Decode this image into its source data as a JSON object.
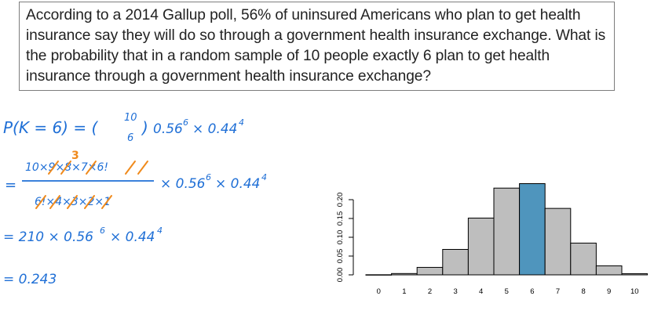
{
  "question": "According to a 2014 Gallup poll, 56% of uninsured Americans who plan to get health insurance say they will do so through a government health insurance exchange. What is the probability that in a random sample of 10 people exactly 6 plan to get health insurance through a government health insurance exchange?",
  "work": {
    "line1": {
      "lhs": "P(K = 6) = (",
      "binom_top": "10",
      "binom_bottom": "6",
      "close": ")",
      "mid": "0.56",
      "exp1": "6",
      "times": "× 0.44",
      "exp2": "4"
    },
    "line2": {
      "eq": "=",
      "numerator": "10×9×8×7×6!",
      "cancel_note": "3",
      "denominator": "6!×4×3×2×1",
      "rest": "× 0.56",
      "exp1": "6",
      "times": "× 0.44",
      "exp2": "4"
    },
    "line3": {
      "text": "= 210 × 0.56",
      "exp1": "6",
      "times": "× 0.44",
      "exp2": "4"
    },
    "line4": {
      "text": "= 0.243"
    }
  },
  "colors": {
    "bar_fill": "#bebebe",
    "highlight_fill": "#4f95bd",
    "ink_blue": "#1f6fd6",
    "ink_orange": "#f08a1c"
  },
  "chart_data": {
    "type": "bar",
    "categories": [
      "0",
      "1",
      "2",
      "3",
      "4",
      "5",
      "6",
      "7",
      "8",
      "9",
      "10"
    ],
    "values": [
      0.0003,
      0.0035,
      0.0199,
      0.0677,
      0.151,
      0.2308,
      0.2427,
      0.1768,
      0.0845,
      0.0239,
      0.003
    ],
    "highlight_index": 6,
    "title": "",
    "xlabel": "",
    "ylabel": "",
    "yticks": [
      "0.00",
      "0.05",
      "0.10",
      "0.15",
      "0.20"
    ],
    "ylim": [
      0,
      0.25
    ],
    "grid": false,
    "legend": false
  }
}
